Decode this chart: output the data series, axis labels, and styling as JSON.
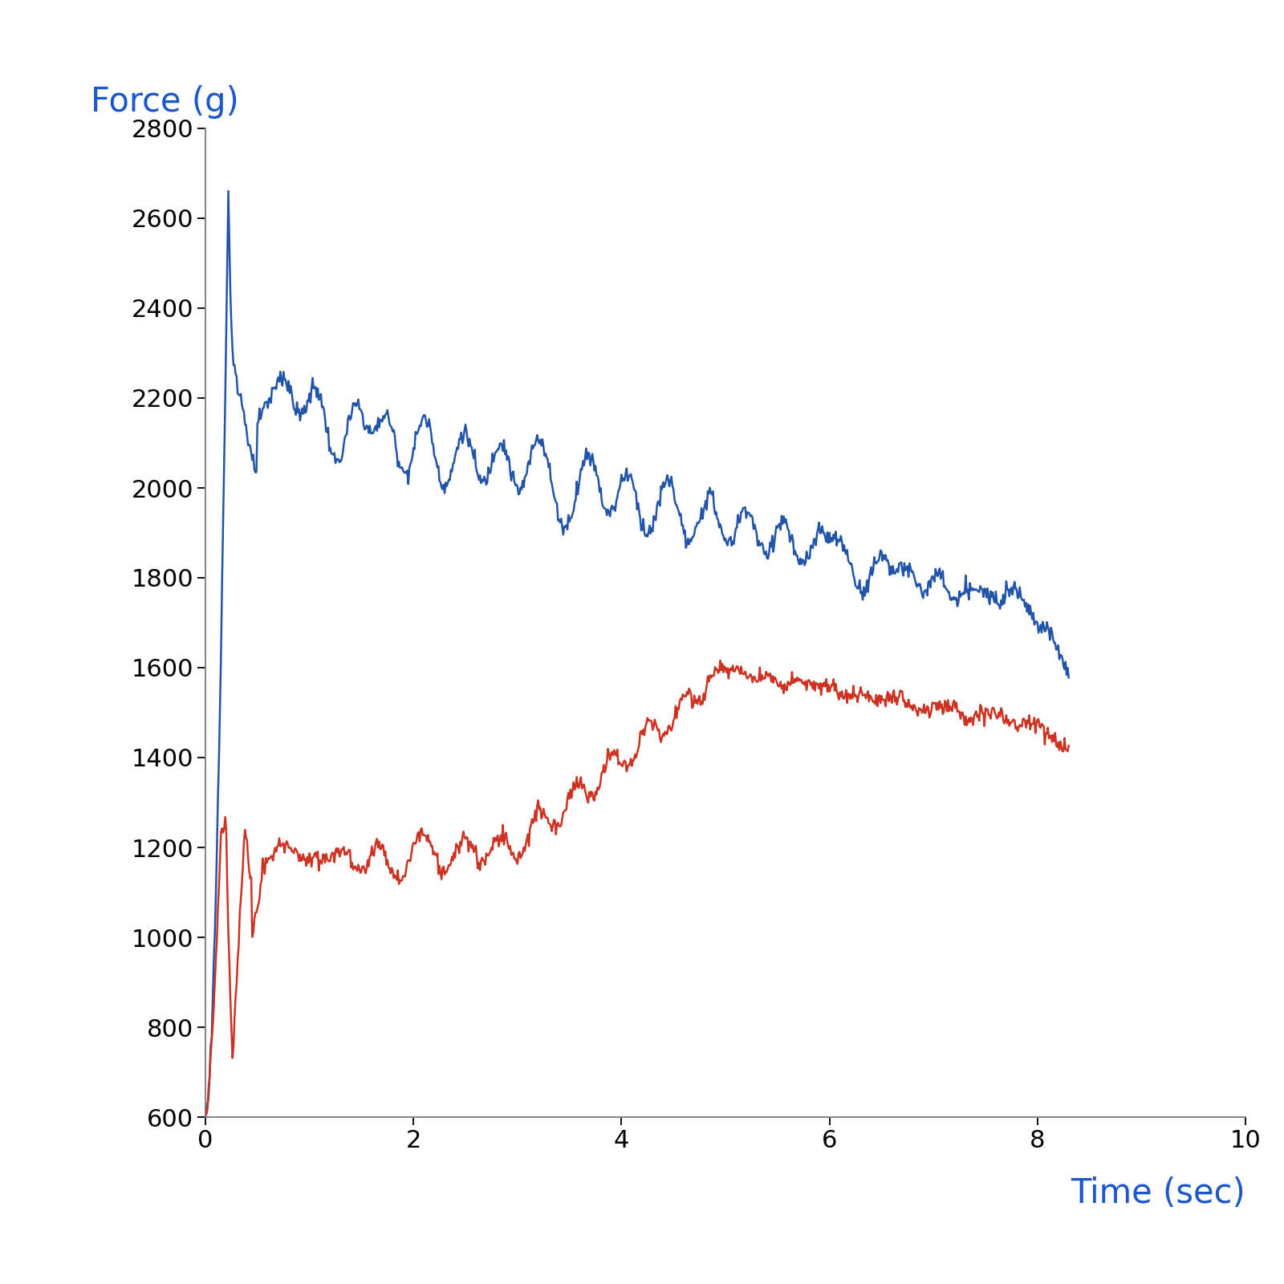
{
  "title": "",
  "xlabel": "Time (sec)",
  "ylabel": "Force (g)",
  "xlabel_color": "#1a56cc",
  "ylabel_color": "#1a56cc",
  "xlim": [
    0,
    10
  ],
  "ylim": [
    600,
    2800
  ],
  "xticks": [
    0,
    2,
    4,
    6,
    8,
    10
  ],
  "yticks": [
    600,
    800,
    1000,
    1200,
    1400,
    1600,
    1800,
    2000,
    2200,
    2400,
    2600,
    2800
  ],
  "blue_color": "#2255aa",
  "red_color": "#cc3322",
  "line_width": 1.8,
  "tick_fontsize": 22,
  "label_fontsize": 30,
  "background_color": "#ffffff",
  "axis_color": "#888888"
}
